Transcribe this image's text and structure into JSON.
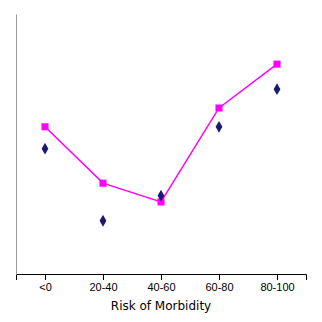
{
  "chart_data": {
    "type": "line",
    "categories": [
      "<0",
      "20-40",
      "40-60",
      "60-80",
      "80-100"
    ],
    "xlabel": "Risk of Morbidity",
    "series": [
      {
        "color": "#FF00FF",
        "values": [
          0.62,
          0.44,
          0.38,
          0.68,
          0.82
        ],
        "marker": "square",
        "line_style": "solid"
      },
      {
        "color": "#1a1a6e",
        "values": [
          0.55,
          0.32,
          0.4,
          0.62,
          0.74
        ],
        "marker": "diamond",
        "line_style": "none"
      }
    ],
    "ylim": [
      0.15,
      0.98
    ],
    "grid": false,
    "tick_labels": "x"
  }
}
